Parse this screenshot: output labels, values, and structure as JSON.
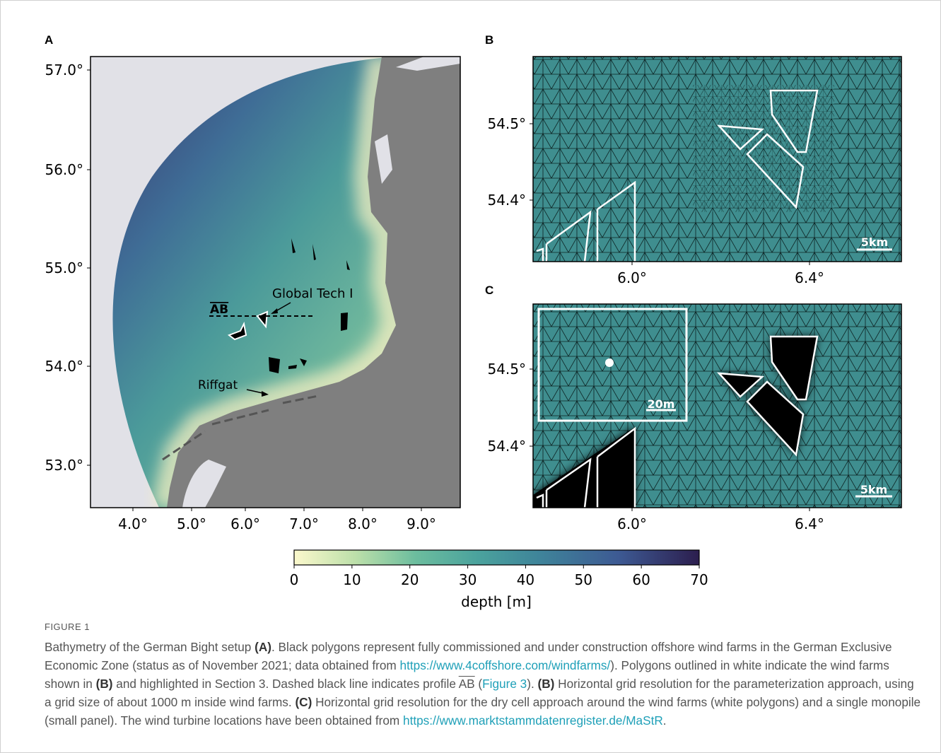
{
  "figure": {
    "panels": {
      "a": {
        "label": "A",
        "xticks": [
          "4.0°",
          "5.0°",
          "6.0°",
          "7.0°",
          "8.0°",
          "9.0°"
        ],
        "yticks": [
          "57.0°",
          "56.0°",
          "55.0°",
          "54.0°",
          "53.0°"
        ],
        "annotations": {
          "profile": "AB",
          "farm": "Global Tech I",
          "riffgat": "Riffgat"
        }
      },
      "b": {
        "label": "B",
        "xticks": [
          "6.0°",
          "6.4°"
        ],
        "yticks": [
          "54.5°",
          "54.4°"
        ],
        "scale": "5km"
      },
      "c": {
        "label": "C",
        "xticks": [
          "6.0°",
          "6.4°"
        ],
        "yticks": [
          "54.5°",
          "54.4°"
        ],
        "scale": "5km",
        "inset_scale": "20m"
      }
    },
    "colorbar": {
      "ticks": [
        "0",
        "10",
        "20",
        "30",
        "40",
        "50",
        "60",
        "70"
      ],
      "label": "depth [m]"
    }
  },
  "caption": {
    "label": "FIGURE 1",
    "parts": [
      "Bathymetry of the German Bight setup ",
      "(A)",
      ". Black polygons represent fully commissioned and under construction offshore wind farms in the German Exclusive Economic Zone (status as of November 2021; data obtained from ",
      "https://www.4coffshore.com/windfarms/",
      "). Polygons outlined in white indicate the wind farms shown in ",
      "(B)",
      " and highlighted in Section 3. Dashed black line indicates profile ",
      "AB",
      " (",
      "Figure 3",
      "). ",
      "(B)",
      " Horizontal grid resolution for the parameterization approach, using a grid size of about 1000 m inside wind farms. ",
      "(C)",
      " Horizontal grid resolution for the dry cell approach around the wind farms (white polygons) and a single monopile (small panel). The wind turbine locations have been obtained from ",
      "https://www.marktstammdatenregister.de/MaStR",
      "."
    ]
  }
}
